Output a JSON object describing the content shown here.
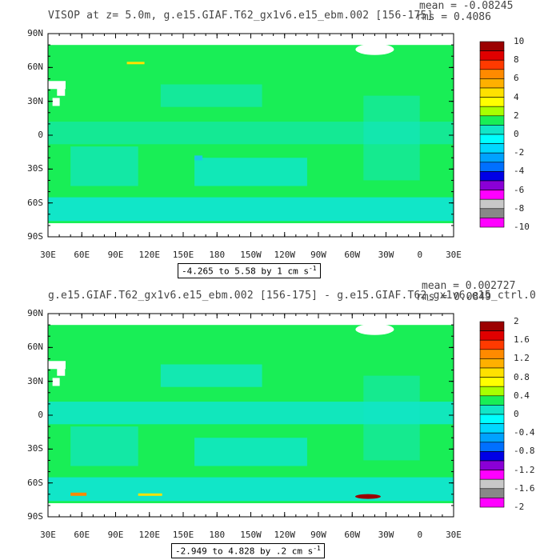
{
  "colors": {
    "land": "#ffffff",
    "ocean_band_0": "#19ee56",
    "ocean_band_neg": "#11e6c8",
    "ocean_band_neg2": "#1cc6e8"
  },
  "panels": [
    {
      "title": "VISOP at z=   5.0m, g.e15.GIAF.T62_gx1v6.e15_ebm.002 [156-175]",
      "mean": "mean = -0.08245",
      "rms": "rms = 0.4086",
      "range_text": "-4.265 to 5.58 by 1 cm s",
      "range_exp": "-1",
      "lat_ticks": [
        "90N",
        "60N",
        "30N",
        "0",
        "30S",
        "60S",
        "90S"
      ],
      "lon_ticks": [
        "30E",
        "60E",
        "90E",
        "120E",
        "150E",
        "180",
        "150W",
        "120W",
        "90W",
        "60W",
        "30W",
        "0",
        "30E"
      ],
      "colorbar": {
        "labels": [
          "10",
          "8",
          "6",
          "4",
          "2",
          "0",
          "-2",
          "-4",
          "-6",
          "-8",
          "-10"
        ],
        "colors": [
          "#9b0000",
          "#e00000",
          "#ff3a00",
          "#ff8a00",
          "#ffb000",
          "#ffe100",
          "#ffff00",
          "#a8ff00",
          "#19ee56",
          "#11e6c8",
          "#00ffff",
          "#00d8ff",
          "#00a2ff",
          "#0070ff",
          "#0000e6",
          "#8a00d6",
          "#ff00ff",
          "#c8c8c8",
          "#888888",
          "#ff00ff"
        ]
      }
    },
    {
      "title": "g.e15.GIAF.T62_gx1v6.e15_ebm.002 [156-175] - g.e15.GIAF.T62_gx1v6.e15_ctrl.0",
      "mean": "mean = 0.002727",
      "rms": "rms = 0.0849",
      "range_text": "-2.949 to 4.828 by .2 cm s",
      "range_exp": "-1",
      "lat_ticks": [
        "90N",
        "60N",
        "30N",
        "0",
        "30S",
        "60S",
        "90S"
      ],
      "lon_ticks": [
        "30E",
        "60E",
        "90E",
        "120E",
        "150E",
        "180",
        "150W",
        "120W",
        "90W",
        "60W",
        "30W",
        "0",
        "30E"
      ],
      "colorbar": {
        "labels": [
          "2",
          "1.6",
          "1.2",
          "0.8",
          "0.4",
          "0",
          "-0.4",
          "-0.8",
          "-1.2",
          "-1.6",
          "-2"
        ],
        "colors": [
          "#9b0000",
          "#e00000",
          "#ff3a00",
          "#ff8a00",
          "#ffb000",
          "#ffe100",
          "#ffff00",
          "#a8ff00",
          "#19ee56",
          "#11e6c8",
          "#00ffff",
          "#00d8ff",
          "#00a2ff",
          "#0070ff",
          "#0000e6",
          "#8a00d6",
          "#ff00ff",
          "#c8c8c8",
          "#888888",
          "#ff00ff"
        ]
      }
    }
  ]
}
